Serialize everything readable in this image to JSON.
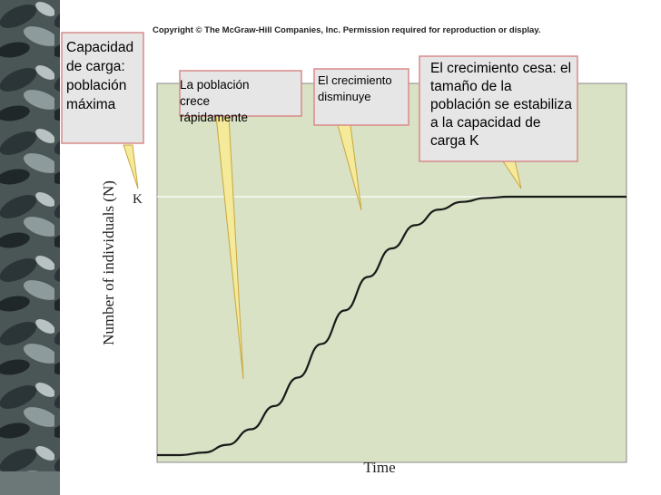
{
  "copyright": "Copyright © The McGraw-Hill Companies, Inc. Permission required for reproduction or display.",
  "colors": {
    "plot_bg": "#d9e2c4",
    "curve": "#1a1a1a",
    "callout_fill": "#e6e6e6",
    "callout_border": "#d98a8a",
    "pointer_fill": "#f4ea9a",
    "pointer_stroke": "#c8a640",
    "photo_dark": "#2f3a3c",
    "photo_light": "#9aa7a8"
  },
  "callouts": {
    "capacity": "Capacidad de carga: población máxima",
    "fast": "La población crece rápidamente",
    "slows": "El crecimiento disminuye",
    "stops": "El crecimiento cesa: el tamaño de la población se estabiliza a la capacidad de carga K"
  },
  "chart_data": {
    "type": "line",
    "title": "",
    "xlabel": "Time",
    "ylabel": "Number of individuals (N)",
    "y_tick_labels": [
      "K"
    ],
    "grid": false,
    "legend": "none",
    "xlim": [
      0,
      1
    ],
    "ylim": [
      0,
      1.2
    ],
    "series": [
      {
        "x": [
          0,
          0.05,
          0.1,
          0.15,
          0.2,
          0.25,
          0.3,
          0.35,
          0.4,
          0.45,
          0.5,
          0.55,
          0.6,
          0.65,
          0.7,
          0.75,
          0.8,
          0.85,
          0.9,
          0.95,
          1.0
        ],
        "values": [
          0.0,
          0.0,
          0.01,
          0.04,
          0.1,
          0.19,
          0.3,
          0.43,
          0.56,
          0.69,
          0.8,
          0.89,
          0.95,
          0.98,
          0.995,
          1.0,
          1.0,
          1.0,
          1.0,
          1.0,
          1.0
        ]
      }
    ]
  }
}
